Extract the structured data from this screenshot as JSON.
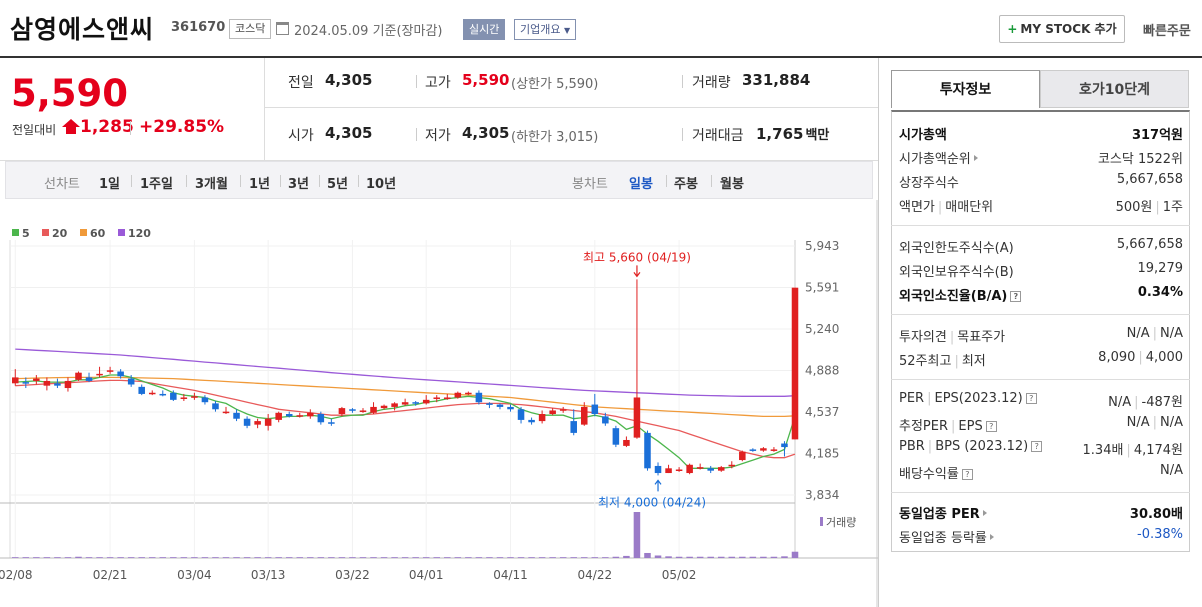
{
  "header": {
    "company_name": "삼영에스앤씨",
    "stock_code": "361670",
    "market": "코스닥",
    "date_basis": "2024.05.09 기준(장마감)",
    "realtime_label": "실시간",
    "company_info_label": "기업개요",
    "mystock_label": "MY STOCK 추가",
    "quick_order_label": "빠른주문"
  },
  "price": {
    "current": "5,590",
    "change_label": "전일대비",
    "change": "1,285",
    "change_pct": "+29.85%",
    "prev_label": "전일",
    "prev": "4,305",
    "open_label": "시가",
    "open": "4,305",
    "high_label": "고가",
    "high": "5,590",
    "upper_limit": "(상한가 5,590)",
    "low_label": "저가",
    "low": "4,305",
    "lower_limit": "(하한가 3,015)",
    "volume_label": "거래량",
    "volume": "331,884",
    "amount_label": "거래대금",
    "amount": "1,765",
    "amount_unit": "백만",
    "up_color": "#e4001b"
  },
  "period_bar": {
    "line_label": "선차트",
    "line_items": [
      "1일",
      "1주일",
      "3개월",
      "1년",
      "3년",
      "5년",
      "10년"
    ],
    "candle_label": "봉차트",
    "candle_items": [
      "일봉",
      "주봉",
      "월봉"
    ],
    "candle_active": "일봉"
  },
  "right_panel": {
    "tab_active": "투자정보",
    "tab_other": "호가10단계",
    "market_cap_label": "시가총액",
    "market_cap": "317억원",
    "cap_rank_label": "시가총액순위",
    "cap_rank": "코스닥 1522위",
    "shares_label": "상장주식수",
    "shares": "5,667,658",
    "par_label": "액면가",
    "unit_label": "매매단위",
    "par": "500원",
    "unit": "1주",
    "foreign_limit_label": "외국인한도주식수(A)",
    "foreign_limit": "5,667,658",
    "foreign_hold_label": "외국인보유주식수(B)",
    "foreign_hold": "19,279",
    "foreign_ratio_label": "외국인소진율(B/A)",
    "foreign_ratio": "0.34%",
    "opinion_label": "투자의견",
    "target_label": "목표주가",
    "opinion": "N/A",
    "target": "N/A",
    "week52_high_label": "52주최고",
    "week52_low_label": "최저",
    "week52_high": "8,090",
    "week52_low": "4,000",
    "per_label": "PER",
    "eps_label": "EPS(2023.12)",
    "per": "N/A",
    "eps": "-487원",
    "est_per_label": "추정PER",
    "est_eps_label": "EPS",
    "est_per": "N/A",
    "est_eps": "N/A",
    "pbr_label": "PBR",
    "bps_label": "BPS (2023.12)",
    "pbr": "1.34배",
    "bps": "4,174원",
    "div_label": "배당수익률",
    "div": "N/A",
    "sector_per_label": "동일업종 PER",
    "sector_per": "30.80배",
    "sector_chg_label": "동일업종 등락률",
    "sector_chg": "-0.38%"
  },
  "chart_data": {
    "type": "candlestick",
    "ma_legend": [
      {
        "name": "5",
        "color": "#4cb64c"
      },
      {
        "name": "20",
        "color": "#e85a5a"
      },
      {
        "name": "60",
        "color": "#f09a3a"
      },
      {
        "name": "120",
        "color": "#9a5ad8"
      }
    ],
    "y_ticks": [
      "5,943",
      "5,591",
      "5,240",
      "4,888",
      "4,537",
      "4,185",
      "3,834"
    ],
    "y_range": [
      3834,
      5943
    ],
    "x_ticks": [
      "02/08",
      "02/21",
      "03/04",
      "03/13",
      "03/22",
      "04/01",
      "04/11",
      "04/22",
      "05/02"
    ],
    "high_annotation": "최고 5,660 (04/19)",
    "low_annotation": "최저 4,000 (04/24)",
    "volume_legend": "거래량",
    "candles": [
      [
        4780,
        4830,
        4900,
        4760
      ],
      [
        4790,
        4780,
        4830,
        4740
      ],
      [
        4800,
        4820,
        4850,
        4770
      ],
      [
        4760,
        4800,
        4830,
        4720
      ],
      [
        4780,
        4760,
        4820,
        4740
      ],
      [
        4740,
        4800,
        4830,
        4710
      ],
      [
        4810,
        4870,
        4880,
        4800
      ],
      [
        4830,
        4800,
        4870,
        4790
      ],
      [
        4850,
        4860,
        4920,
        4830
      ],
      [
        4890,
        4890,
        4920,
        4860
      ],
      [
        4880,
        4840,
        4900,
        4820
      ],
      [
        4820,
        4770,
        4850,
        4750
      ],
      [
        4750,
        4690,
        4770,
        4680
      ],
      [
        4690,
        4700,
        4720,
        4680
      ],
      [
        4690,
        4680,
        4720,
        4670
      ],
      [
        4700,
        4640,
        4720,
        4630
      ],
      [
        4650,
        4660,
        4690,
        4630
      ],
      [
        4660,
        4670,
        4700,
        4640
      ],
      [
        4660,
        4620,
        4680,
        4600
      ],
      [
        4610,
        4560,
        4630,
        4540
      ],
      [
        4540,
        4540,
        4580,
        4520
      ],
      [
        4530,
        4480,
        4560,
        4460
      ],
      [
        4480,
        4420,
        4500,
        4400
      ],
      [
        4430,
        4460,
        4480,
        4400
      ],
      [
        4420,
        4480,
        4520,
        4380
      ],
      [
        4470,
        4530,
        4540,
        4450
      ],
      [
        4520,
        4500,
        4540,
        4490
      ],
      [
        4510,
        4510,
        4530,
        4490
      ],
      [
        4500,
        4530,
        4560,
        4480
      ],
      [
        4520,
        4450,
        4540,
        4430
      ],
      [
        4450,
        4440,
        4480,
        4420
      ],
      [
        4520,
        4570,
        4580,
        4500
      ],
      [
        4560,
        4550,
        4570,
        4530
      ],
      [
        4550,
        4550,
        4570,
        4530
      ],
      [
        4530,
        4580,
        4620,
        4520
      ],
      [
        4570,
        4590,
        4600,
        4560
      ],
      [
        4580,
        4610,
        4620,
        4550
      ],
      [
        4600,
        4620,
        4650,
        4590
      ],
      [
        4620,
        4610,
        4630,
        4590
      ],
      [
        4610,
        4640,
        4680,
        4600
      ],
      [
        4650,
        4660,
        4680,
        4620
      ],
      [
        4660,
        4660,
        4690,
        4640
      ],
      [
        4660,
        4700,
        4710,
        4650
      ],
      [
        4690,
        4700,
        4710,
        4680
      ],
      [
        4700,
        4620,
        4720,
        4600
      ],
      [
        4610,
        4600,
        4620,
        4570
      ],
      [
        4600,
        4580,
        4610,
        4560
      ],
      [
        4580,
        4560,
        4600,
        4540
      ],
      [
        4560,
        4470,
        4580,
        4440
      ],
      [
        4470,
        4450,
        4490,
        4430
      ],
      [
        4460,
        4520,
        4550,
        4440
      ],
      [
        4520,
        4550,
        4570,
        4510
      ],
      [
        4550,
        4560,
        4580,
        4530
      ],
      [
        4460,
        4360,
        4560,
        4340
      ],
      [
        4430,
        4580,
        4620,
        4420
      ],
      [
        4600,
        4520,
        4690,
        4500
      ],
      [
        4500,
        4440,
        4530,
        4420
      ],
      [
        4400,
        4260,
        4420,
        4240
      ],
      [
        4250,
        4300,
        4330,
        4240
      ],
      [
        4320,
        4660,
        5660,
        4310
      ],
      [
        4360,
        4060,
        4380,
        4040
      ],
      [
        4080,
        4020,
        4110,
        4000
      ],
      [
        4020,
        4060,
        4090,
        4020
      ],
      [
        4050,
        4050,
        4070,
        4030
      ],
      [
        4020,
        4090,
        4100,
        4010
      ],
      [
        4070,
        4070,
        4100,
        4050
      ],
      [
        4060,
        4040,
        4080,
        4020
      ],
      [
        4040,
        4070,
        4080,
        4030
      ],
      [
        4080,
        4090,
        4120,
        4060
      ],
      [
        4130,
        4200,
        4210,
        4120
      ],
      [
        4220,
        4210,
        4230,
        4200
      ],
      [
        4210,
        4230,
        4240,
        4200
      ],
      [
        4210,
        4220,
        4240,
        4200
      ],
      [
        4270,
        4240,
        4290,
        4160
      ],
      [
        4305,
        5590,
        5590,
        4305
      ]
    ],
    "ma5": [
      4790,
      4795,
      4800,
      4790,
      4790,
      4790,
      4810,
      4810,
      4830,
      4850,
      4850,
      4830,
      4800,
      4770,
      4740,
      4700,
      4680,
      4670,
      4660,
      4630,
      4610,
      4560,
      4520,
      4490,
      4480,
      4490,
      4500,
      4500,
      4510,
      4500,
      4480,
      4500,
      4510,
      4510,
      4540,
      4560,
      4570,
      4590,
      4600,
      4620,
      4630,
      4650,
      4660,
      4670,
      4660,
      4650,
      4630,
      4610,
      4560,
      4530,
      4510,
      4510,
      4510,
      4480,
      4490,
      4510,
      4490,
      4460,
      4390,
      4420,
      4350,
      4290,
      4220,
      4150,
      4060,
      4060,
      4060,
      4060,
      4070,
      4100,
      4130,
      4160,
      4180,
      4220,
      4500
    ],
    "ma20": [
      4760,
      4765,
      4770,
      4775,
      4780,
      4785,
      4790,
      4795,
      4800,
      4805,
      4805,
      4800,
      4795,
      4780,
      4765,
      4750,
      4735,
      4720,
      4700,
      4680,
      4660,
      4640,
      4620,
      4600,
      4580,
      4560,
      4550,
      4540,
      4530,
      4520,
      4510,
      4510,
      4510,
      4515,
      4520,
      4530,
      4540,
      4550,
      4560,
      4570,
      4580,
      4590,
      4600,
      4605,
      4610,
      4610,
      4610,
      4605,
      4600,
      4590,
      4580,
      4570,
      4560,
      4550,
      4540,
      4530,
      4515,
      4500,
      4480,
      4460,
      4440,
      4420,
      4400,
      4380,
      4350,
      4320,
      4290,
      4260,
      4230,
      4200,
      4180,
      4160,
      4150,
      4150,
      4180
    ],
    "ma60": [
      4820,
      4822,
      4825,
      4826,
      4828,
      4829,
      4830,
      4830,
      4830,
      4830,
      4829,
      4828,
      4826,
      4824,
      4822,
      4820,
      4815,
      4810,
      4805,
      4800,
      4795,
      4790,
      4785,
      4780,
      4775,
      4770,
      4765,
      4760,
      4755,
      4750,
      4745,
      4740,
      4735,
      4730,
      4725,
      4720,
      4715,
      4710,
      4705,
      4700,
      4695,
      4690,
      4685,
      4680,
      4675,
      4670,
      4665,
      4660,
      4650,
      4640,
      4630,
      4620,
      4610,
      4600,
      4590,
      4580,
      4575,
      4570,
      4565,
      4560,
      4555,
      4550,
      4545,
      4540,
      4535,
      4530,
      4525,
      4520,
      4515,
      4510,
      4505,
      4500,
      4500,
      4500,
      4505
    ],
    "ma120": [
      5070,
      5065,
      5060,
      5055,
      5050,
      5045,
      5040,
      5035,
      5030,
      5025,
      5020,
      5012,
      5005,
      4998,
      4990,
      4983,
      4975,
      4968,
      4960,
      4953,
      4945,
      4938,
      4930,
      4922,
      4915,
      4908,
      4900,
      4893,
      4885,
      4878,
      4870,
      4863,
      4856,
      4849,
      4842,
      4835,
      4828,
      4822,
      4816,
      4810,
      4804,
      4798,
      4792,
      4786,
      4780,
      4774,
      4768,
      4762,
      4756,
      4750,
      4744,
      4738,
      4732,
      4726,
      4720,
      4716,
      4712,
      4708,
      4704,
      4700,
      4696,
      4692,
      4688,
      4684,
      4680,
      4678,
      4676,
      4674,
      4672,
      4670,
      4670,
      4670,
      4670,
      4670,
      4675
    ],
    "volume": [
      2,
      2,
      2,
      2,
      2,
      2,
      3,
      2,
      2,
      2,
      2,
      2,
      2,
      2,
      2,
      2,
      2,
      2,
      2,
      2,
      2,
      2,
      2,
      2,
      2,
      2,
      2,
      2,
      2,
      2,
      2,
      2,
      2,
      2,
      2,
      2,
      2,
      2,
      2,
      2,
      2,
      2,
      2,
      2,
      2,
      2,
      2,
      2,
      2,
      2,
      2,
      2,
      2,
      2,
      2,
      2,
      2,
      3,
      5,
      110,
      12,
      6,
      4,
      3,
      3,
      3,
      3,
      3,
      3,
      3,
      3,
      3,
      3,
      4,
      15
    ]
  }
}
